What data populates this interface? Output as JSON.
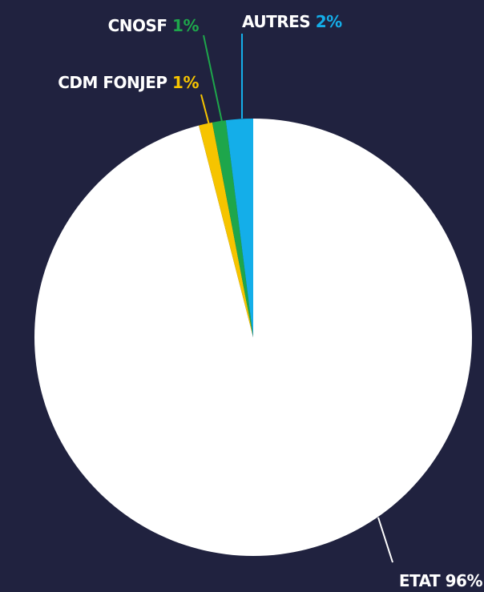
{
  "chart_data": {
    "type": "pie",
    "categories": [
      "ETAT",
      "CDM FONJEP",
      "CNOSF",
      "AUTRES"
    ],
    "values": [
      96,
      1,
      1,
      2
    ],
    "value_labels": [
      "96%",
      "1%",
      "1%",
      "2%"
    ],
    "colors": [
      "#ffffff",
      "#f6c400",
      "#1ea64b",
      "#14aee9"
    ],
    "label_colors": [
      "#ffffff",
      "#f6c400",
      "#1ea64b",
      "#14aee9"
    ]
  }
}
